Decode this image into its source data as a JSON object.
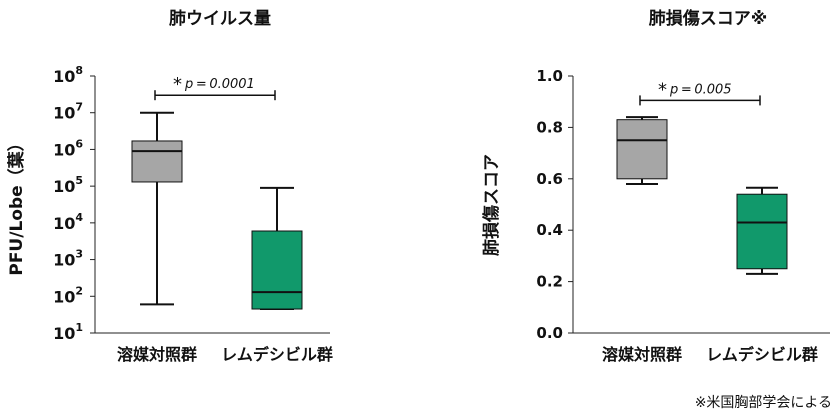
{
  "chart_data": [
    {
      "type": "box",
      "title": "肺ウイルス量",
      "ylabel": "PFU/Lobe（葉）",
      "yscale": "log",
      "ylim": [
        10,
        100000000
      ],
      "yticks": [
        {
          "value": 10,
          "mant": "10",
          "exp": "1"
        },
        {
          "value": 100,
          "mant": "10",
          "exp": "2"
        },
        {
          "value": 1000,
          "mant": "10",
          "exp": "3"
        },
        {
          "value": 10000,
          "mant": "10",
          "exp": "4"
        },
        {
          "value": 100000,
          "mant": "10",
          "exp": "5"
        },
        {
          "value": 1000000,
          "mant": "10",
          "exp": "6"
        },
        {
          "value": 10000000,
          "mant": "10",
          "exp": "7"
        },
        {
          "value": 100000000,
          "mant": "10",
          "exp": "8"
        }
      ],
      "categories": [
        "溶媒対照群",
        "レムデシビル群"
      ],
      "boxes": [
        {
          "category": "溶媒対照群",
          "color": "#a6a6a6",
          "min": 60,
          "q1": 130000,
          "median": 900000,
          "q3": 1700000,
          "max": 10000000
        },
        {
          "category": "レムデシビル群",
          "color": "#11996b",
          "min": 45,
          "q1": 45,
          "median": 130,
          "q3": 6000,
          "max": 90000
        }
      ],
      "significance": {
        "star": "*",
        "label": "p = 0.0001",
        "level": 30000000
      }
    },
    {
      "type": "box",
      "title": "肺損傷スコア※",
      "ylabel": "肺損傷スコア",
      "yscale": "linear",
      "ylim": [
        0.0,
        1.0
      ],
      "yticks": [
        {
          "value": 0.0,
          "label": "0.0"
        },
        {
          "value": 0.2,
          "label": "0.2"
        },
        {
          "value": 0.4,
          "label": "0.4"
        },
        {
          "value": 0.6,
          "label": "0.6"
        },
        {
          "value": 0.8,
          "label": "0.8"
        },
        {
          "value": 1.0,
          "label": "1.0"
        }
      ],
      "categories": [
        "溶媒対照群",
        "レムデシビル群"
      ],
      "boxes": [
        {
          "category": "溶媒対照群",
          "color": "#a6a6a6",
          "min": 0.58,
          "q1": 0.6,
          "median": 0.75,
          "q3": 0.83,
          "max": 0.84
        },
        {
          "category": "レムデシビル群",
          "color": "#11996b",
          "min": 0.23,
          "q1": 0.25,
          "median": 0.43,
          "q3": 0.54,
          "max": 0.565
        }
      ],
      "significance": {
        "star": "*",
        "label": "p = 0.005",
        "level": 0.905
      }
    }
  ],
  "footnote": "※米国胸部学会による"
}
